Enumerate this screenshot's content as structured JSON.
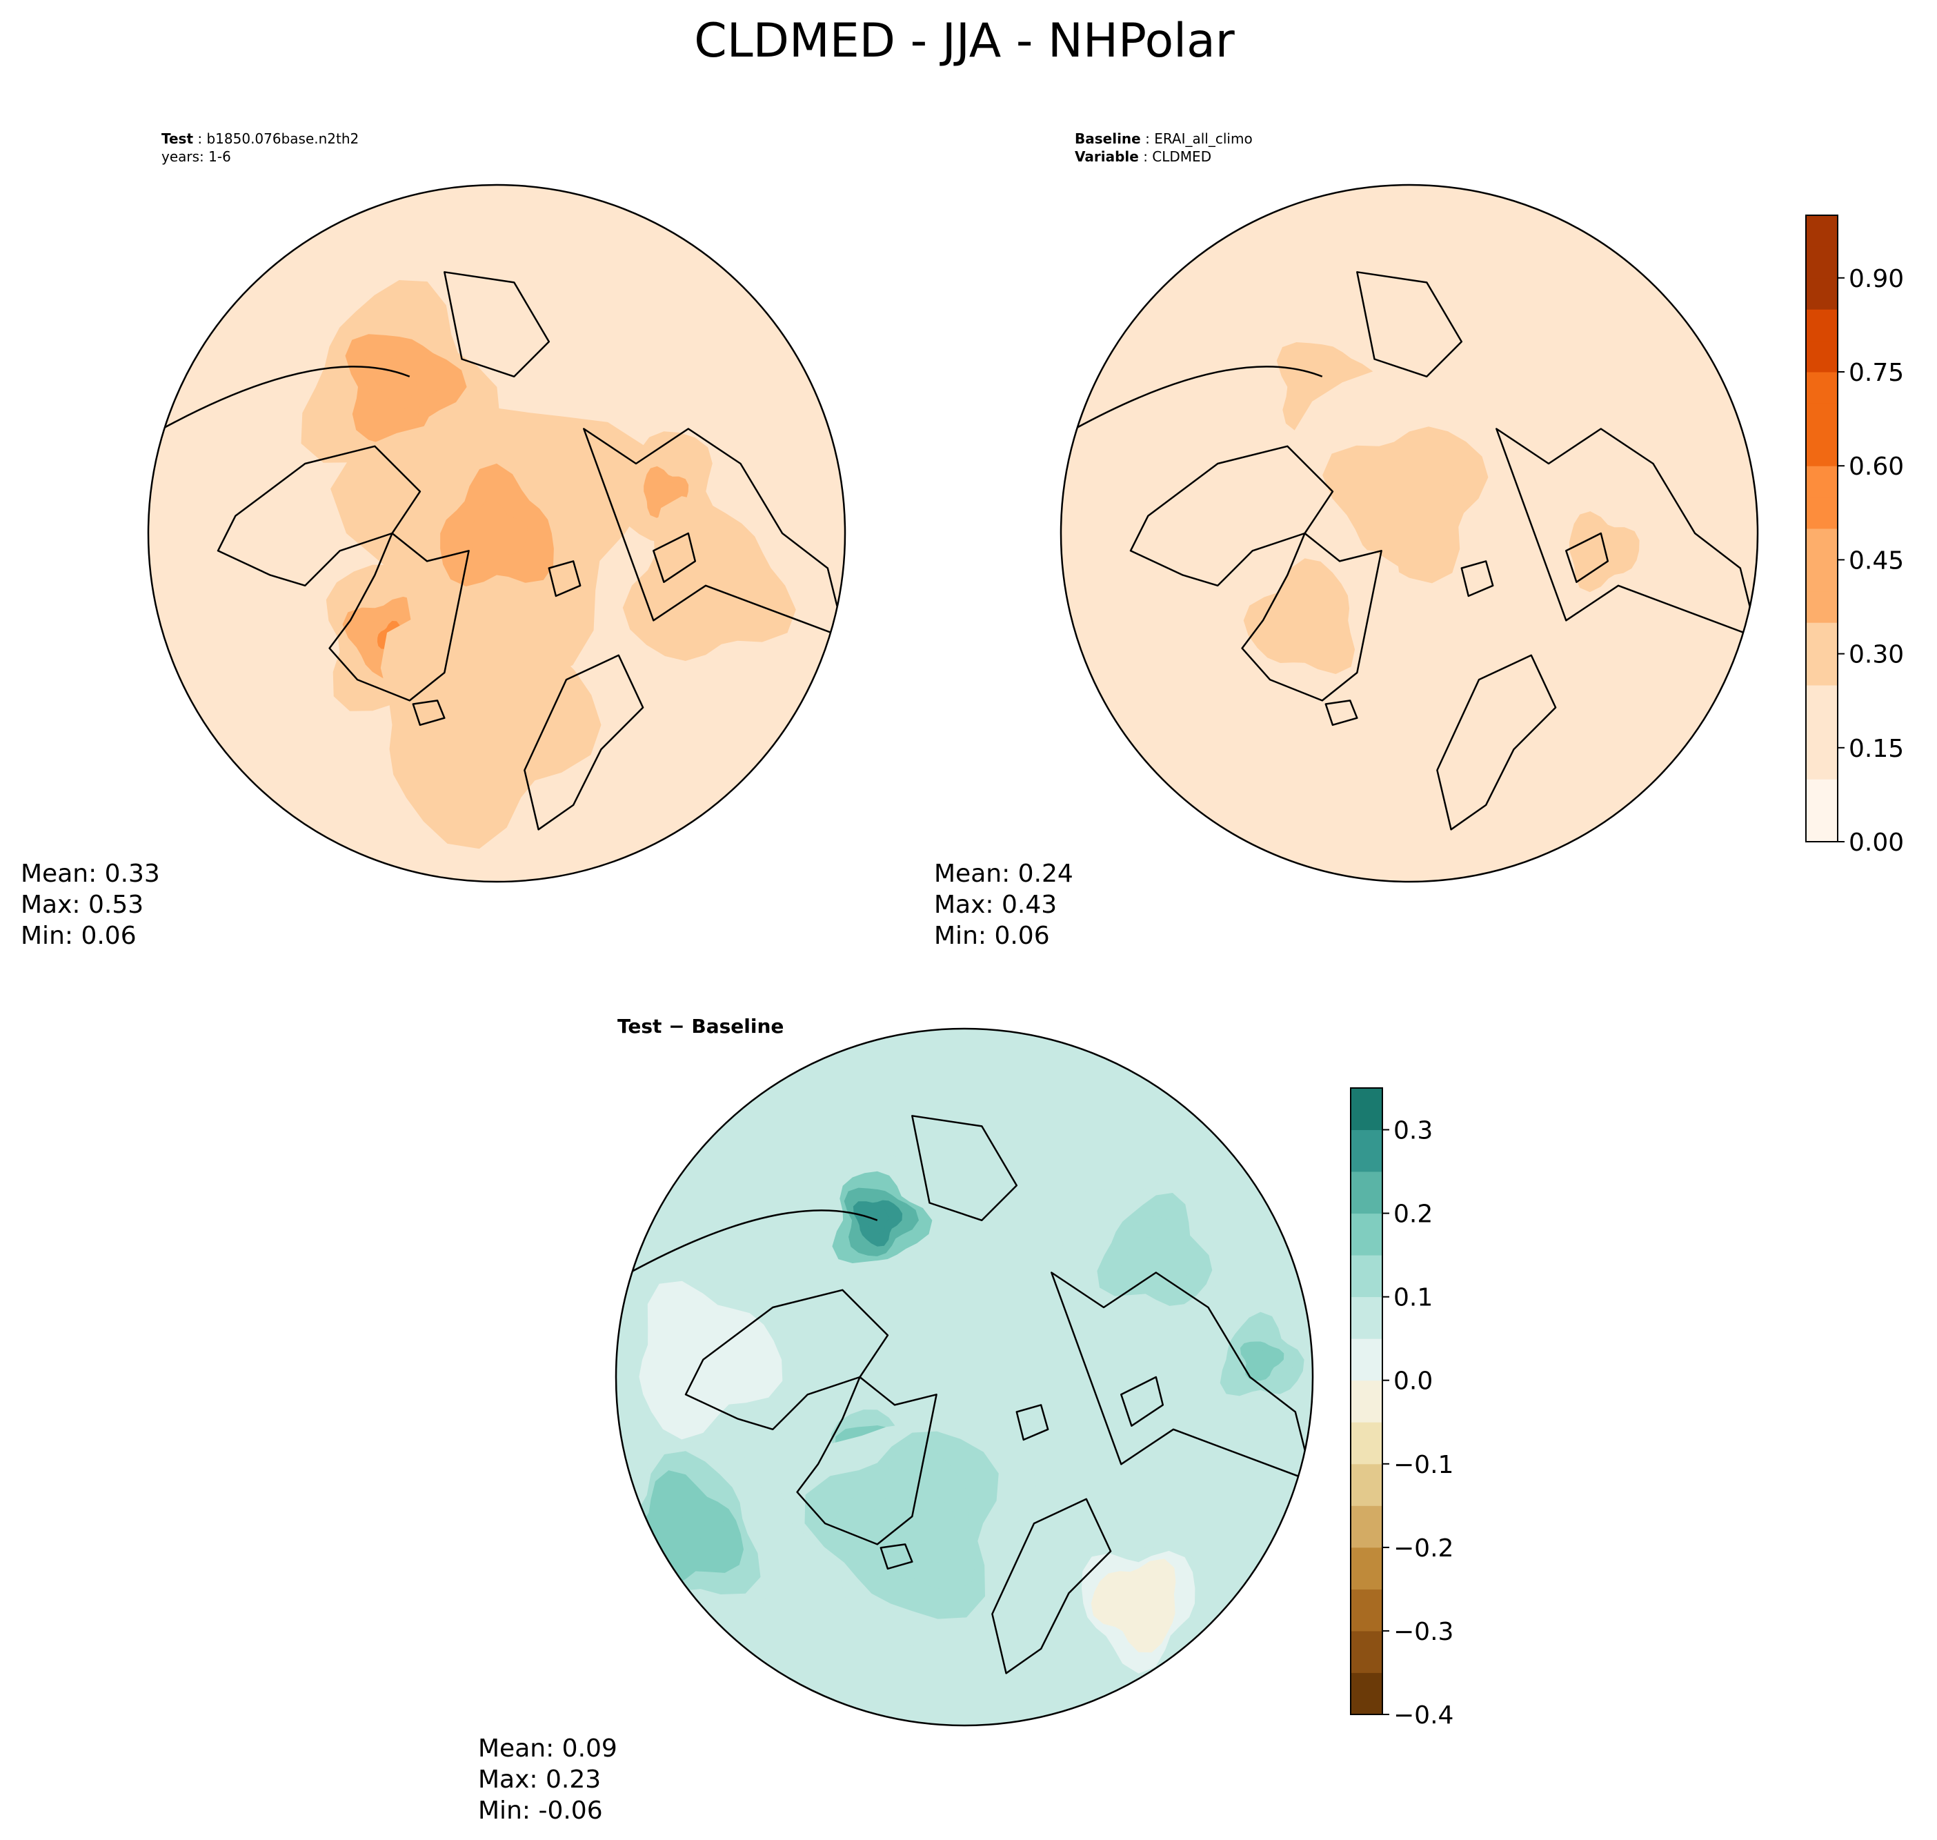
{
  "chart_data": {
    "type": "heatmap",
    "title": "CLDMED - JJA - NHPolar",
    "projection": "north polar stereographic",
    "panels": [
      {
        "id": "test",
        "label_key": "Test",
        "label_value": "b1850.076base.n2th2",
        "sub_text": "years: 1-6",
        "stats": {
          "mean": "Mean:  0.33",
          "max": "Max:  0.53",
          "min": "Min:  0.06"
        },
        "colormap": "Oranges",
        "field": {
          "background": 0.24,
          "blobs": [
            {
              "cx": -0.28,
              "cy": -0.42,
              "r": 0.26,
              "v": 0.46
            },
            {
              "cx": -0.3,
              "cy": 0.3,
              "r": 0.2,
              "v": 0.5
            },
            {
              "cx": 0.0,
              "cy": 0.0,
              "r": 0.4,
              "v": 0.4
            },
            {
              "cx": 0.48,
              "cy": -0.12,
              "r": 0.16,
              "v": 0.4
            },
            {
              "cx": 0.6,
              "cy": 0.15,
              "r": 0.22,
              "v": 0.34
            },
            {
              "cx": -0.05,
              "cy": 0.55,
              "r": 0.3,
              "v": 0.33
            },
            {
              "cx": -0.8,
              "cy": 0.05,
              "r": 0.3,
              "v": 0.18
            }
          ]
        }
      },
      {
        "id": "baseline",
        "label_key": "Baseline",
        "label_value": "ERAI_all_climo",
        "sub_key": "Variable",
        "sub_value": "CLDMED",
        "stats": {
          "mean": "Mean:  0.24",
          "max": "Max:  0.43",
          "min": "Min:  0.06"
        },
        "colormap": "Oranges",
        "field": {
          "background": 0.17,
          "blobs": [
            {
              "cx": -0.25,
              "cy": -0.42,
              "r": 0.22,
              "v": 0.3
            },
            {
              "cx": 0.0,
              "cy": -0.1,
              "r": 0.35,
              "v": 0.32
            },
            {
              "cx": -0.3,
              "cy": 0.25,
              "r": 0.25,
              "v": 0.28
            },
            {
              "cx": 0.55,
              "cy": 0.05,
              "r": 0.25,
              "v": 0.26
            },
            {
              "cx": 0.3,
              "cy": 0.6,
              "r": 0.3,
              "v": 0.2
            }
          ]
        }
      },
      {
        "id": "diff",
        "label_text": "Test − Baseline",
        "stats": {
          "mean": "Mean:  0.09",
          "max": "Max:  0.23",
          "min": "Min: -0.06"
        },
        "colormap": "BrBG",
        "field": {
          "background": 0.07,
          "blobs": [
            {
              "cx": -0.25,
              "cy": -0.45,
              "r": 0.16,
              "v": 0.26
            },
            {
              "cx": -0.25,
              "cy": 0.24,
              "r": 0.14,
              "v": 0.3
            },
            {
              "cx": -0.15,
              "cy": 0.42,
              "r": 0.32,
              "v": 0.14
            },
            {
              "cx": -0.8,
              "cy": 0.45,
              "r": 0.25,
              "v": 0.18
            },
            {
              "cx": -0.75,
              "cy": -0.05,
              "r": 0.25,
              "v": 0.01
            },
            {
              "cx": 0.5,
              "cy": 0.65,
              "r": 0.2,
              "v": -0.02
            },
            {
              "cx": 0.55,
              "cy": -0.35,
              "r": 0.25,
              "v": 0.12
            },
            {
              "cx": 0.85,
              "cy": -0.05,
              "r": 0.14,
              "v": 0.16
            }
          ]
        }
      }
    ],
    "colorbars": [
      {
        "id": "abs",
        "colormap": "Oranges",
        "range": [
          0.0,
          1.0
        ],
        "levels": 20,
        "ticks": [
          "0.00",
          "0.15",
          "0.30",
          "0.45",
          "0.60",
          "0.75",
          "0.90"
        ],
        "tick_values": [
          0.0,
          0.15,
          0.3,
          0.45,
          0.6,
          0.75,
          0.9
        ]
      },
      {
        "id": "diff",
        "colormap": "BrBG",
        "range": [
          -0.4,
          0.35
        ],
        "levels": 15,
        "ticks": [
          "0.3",
          "0.2",
          "0.1",
          "0.0",
          "−0.1",
          "−0.2",
          "−0.3",
          "−0.4"
        ],
        "tick_values": [
          0.3,
          0.2,
          0.1,
          0.0,
          -0.1,
          -0.2,
          -0.3,
          -0.4
        ]
      }
    ]
  },
  "colors": {
    "oranges": [
      "#fff5eb",
      "#fee6ce",
      "#fdd0a2",
      "#fdae6b",
      "#fd8d3c",
      "#f16913",
      "#d94801",
      "#a63603",
      "#7f2704"
    ],
    "brbg_neg": [
      "#f5f0dc",
      "#f0e2b4",
      "#e3c98c",
      "#d3ab64",
      "#bf8a3a",
      "#a86b22",
      "#8c5114",
      "#6b3a08"
    ],
    "brbg_pos": [
      "#e6f3f1",
      "#c7e9e3",
      "#a5ddd3",
      "#80cdbf",
      "#5ab4a6",
      "#35978f",
      "#1a7a6f",
      "#00594f"
    ],
    "coast": "#000000"
  }
}
